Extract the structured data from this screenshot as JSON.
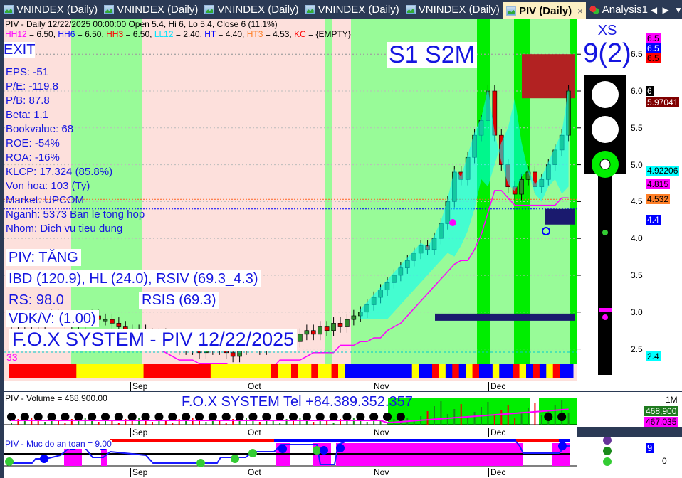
{
  "tabs": [
    {
      "label": "VNINDEX (Daily)"
    },
    {
      "label": "VNINDEX (Daily)"
    },
    {
      "label": "VNINDEX (Daily)"
    },
    {
      "label": "VNINDEX (Daily)"
    },
    {
      "label": "VNINDEX (Daily)"
    },
    {
      "label": "PIV (Daily)",
      "active": true
    },
    {
      "label": "Analysis1"
    }
  ],
  "tab_close": "×",
  "tab_nav": "◀ ▶ ▼",
  "header": {
    "line1": "PIV - Daily 12/22/2025 00:00:00 Open 5.4, Hi 6, Lo 5.4, Close 6 (11.1%)",
    "levels": [
      {
        "name": "HH12",
        "value": " = 6.50, ",
        "color": "#ff00ff"
      },
      {
        "name": "HH6",
        "value": " = 6.50, ",
        "color": "#0000ff"
      },
      {
        "name": "HH3",
        "value": " = 6.50, ",
        "color": "#ff0000"
      },
      {
        "name": "LL12",
        "value": " = 2.40, ",
        "color": "#00e5ff"
      },
      {
        "name": "HT",
        "value": "  = 4.40, ",
        "color": "#0000ff"
      },
      {
        "name": "HT3",
        "value": "  = 4.53, ",
        "color": "#ff7f27"
      },
      {
        "name": "KC",
        "value": " = {EMPTY}",
        "color": "#ff0000"
      }
    ]
  },
  "exit_label": "EXIT",
  "signal_label": "S1  S2M",
  "fundamentals": [
    "EPS: -51",
    "P/E: -119.8",
    "P/B: 87.8",
    "Beta: 1.1",
    "Bookvalue: 68",
    "ROE: -54%",
    "ROA: -16%",
    "KLCP: 17.324 (85.8%)",
    "Von hoa: 103 (Ty)",
    "Market: UPCOM",
    "Nganh: 5373 Ban le tong hop",
    "Nhom: Dich vu tieu dung"
  ],
  "status": {
    "trend": "PIV: TĂNG",
    "ibd": "IBD (120.9), HL (24.0), RSIV (69.3_4.3)",
    "rs": "RS: 98.0",
    "rsis": "RSIS (69.3)",
    "vdk": "VDK/V:  (1.00)",
    "title": "F.O.X SYSTEM - PIV 12/22/2025",
    "count": "33"
  },
  "xs": {
    "label": "XS",
    "value": "9(2)"
  },
  "traffic_light": {
    "red": "off",
    "yellow": "off",
    "green": "on"
  },
  "price_axis": {
    "ticks": [
      "6.5",
      "6.0",
      "5.5",
      "5.0",
      "4.5",
      "4.0",
      "3.5",
      "3.0",
      "2.5"
    ],
    "markers": [
      {
        "v": "6.5",
        "bg": "#ff00ff",
        "fg": "#000"
      },
      {
        "v": "6.5",
        "bg": "#0000ff",
        "fg": "#fff"
      },
      {
        "v": "6.5",
        "bg": "#ff0000",
        "fg": "#000"
      },
      {
        "v": "6",
        "bg": "#000",
        "fg": "#fff"
      },
      {
        "v": "5.97041",
        "bg": "#800000",
        "fg": "#fff"
      },
      {
        "v": "4.92206",
        "bg": "#00ffff",
        "fg": "#000"
      },
      {
        "v": "4.815",
        "bg": "#ff00ff",
        "fg": "#000"
      },
      {
        "v": "4.532",
        "bg": "#ff7f27",
        "fg": "#000"
      },
      {
        "v": "4.4",
        "bg": "#0000ff",
        "fg": "#fff"
      },
      {
        "v": "2.4",
        "bg": "#00ffff",
        "fg": "#000"
      }
    ]
  },
  "months": [
    "Sep",
    "Oct",
    "Nov",
    "Dec"
  ],
  "chart_data": {
    "type": "candlestick",
    "closes": [
      2.85,
      2.8,
      2.9,
      2.85,
      2.8,
      2.9,
      2.95,
      2.9,
      2.85,
      2.8,
      2.85,
      2.9,
      2.95,
      2.9,
      2.9,
      2.85,
      2.8,
      2.75,
      2.7,
      2.75,
      2.7,
      2.65,
      2.7,
      2.6,
      2.55,
      2.5,
      2.55,
      2.5,
      2.45,
      2.5,
      2.55,
      2.5,
      2.45,
      2.4,
      2.5,
      2.55,
      2.6,
      2.5,
      2.55,
      2.6,
      2.6,
      2.65,
      2.6,
      2.7,
      2.75,
      2.7,
      2.8,
      2.75,
      2.85,
      2.8,
      2.9,
      2.95,
      3.0,
      3.1,
      3.2,
      3.3,
      3.4,
      3.5,
      3.6,
      3.7,
      3.8,
      3.9,
      3.85,
      4.0,
      4.2,
      4.5,
      4.9,
      4.8,
      5.1,
      5.4,
      5.6,
      6.0,
      5.4,
      5.0,
      4.7,
      4.6,
      4.8,
      4.9,
      4.7,
      4.8,
      5.0,
      5.2,
      5.4,
      6.0
    ]
  },
  "volume": {
    "label": "PIV - Volume = 468,900.00",
    "banner": "F.O.X SYSTEM Tel +84.389.352.357",
    "axis_top": "1M",
    "markers": [
      {
        "v": "468,900",
        "bg": "#1f7a1f",
        "fg": "#fff"
      },
      {
        "v": "467,035",
        "bg": "#ff00ff",
        "fg": "#000"
      }
    ]
  },
  "safety": {
    "label": "PIV - Muc do an toan = 9.00",
    "axis_zero": "0",
    "marker": "9"
  }
}
